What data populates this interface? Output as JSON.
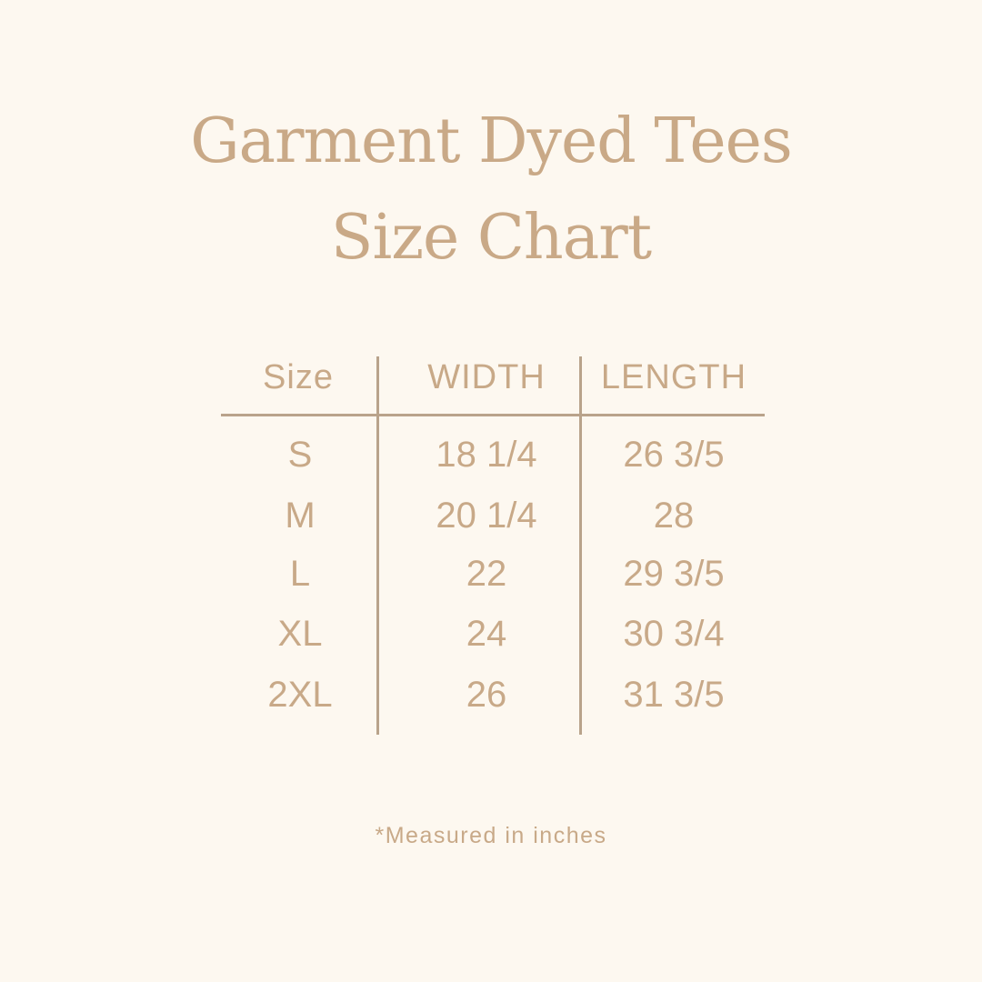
{
  "title": {
    "line1": "Garment Dyed Tees",
    "line2": "Size Chart"
  },
  "colors": {
    "background": "#fdf8f0",
    "text": "#c8a988",
    "rule": "#b9a38b"
  },
  "table": {
    "headers": [
      "Size",
      "WIDTH",
      "LENGTH"
    ],
    "rows": [
      [
        "S",
        "18 1/4",
        "26 3/5"
      ],
      [
        "M",
        "20 1/4",
        "28"
      ],
      [
        "L",
        "22",
        "29 3/5"
      ],
      [
        "XL",
        "24",
        "30 3/4"
      ],
      [
        "2XL",
        "26",
        "31 3/5"
      ]
    ]
  },
  "footnote": "*Measured in inches"
}
